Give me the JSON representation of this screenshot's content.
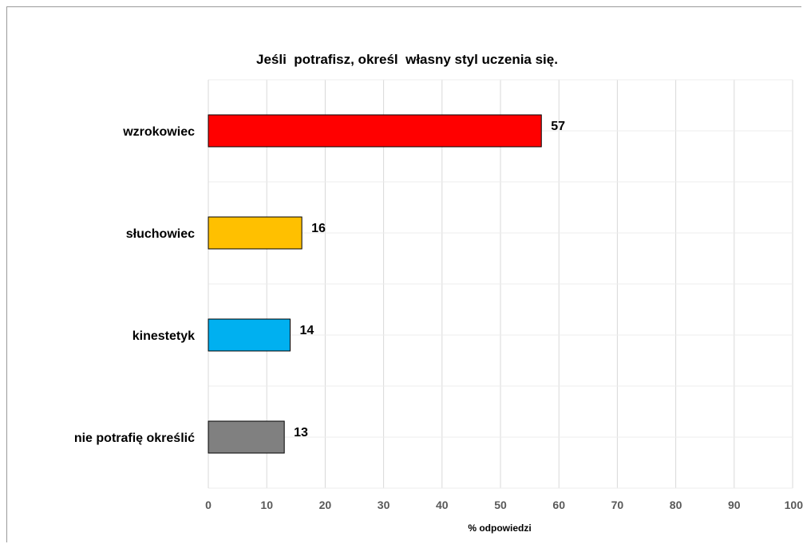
{
  "chart_data": {
    "type": "bar",
    "orientation": "horizontal",
    "title": "Jeśli  potrafisz, określ  własny styl uczenia się.",
    "categories": [
      "wzrokowiec",
      "słuchowiec",
      "kinestetyk",
      "nie potrafię określić"
    ],
    "values": [
      57,
      16,
      14,
      13
    ],
    "colors": [
      "#ff0000",
      "#ffc000",
      "#00b0f0",
      "#808080"
    ],
    "xlabel": "% odpowiedzi",
    "ylabel": "",
    "xlim": [
      0,
      100
    ],
    "xticks": [
      "0",
      "10",
      "20",
      "30",
      "40",
      "50",
      "60",
      "70",
      "80",
      "90",
      "100"
    ],
    "grid": true,
    "legend": "none"
  }
}
